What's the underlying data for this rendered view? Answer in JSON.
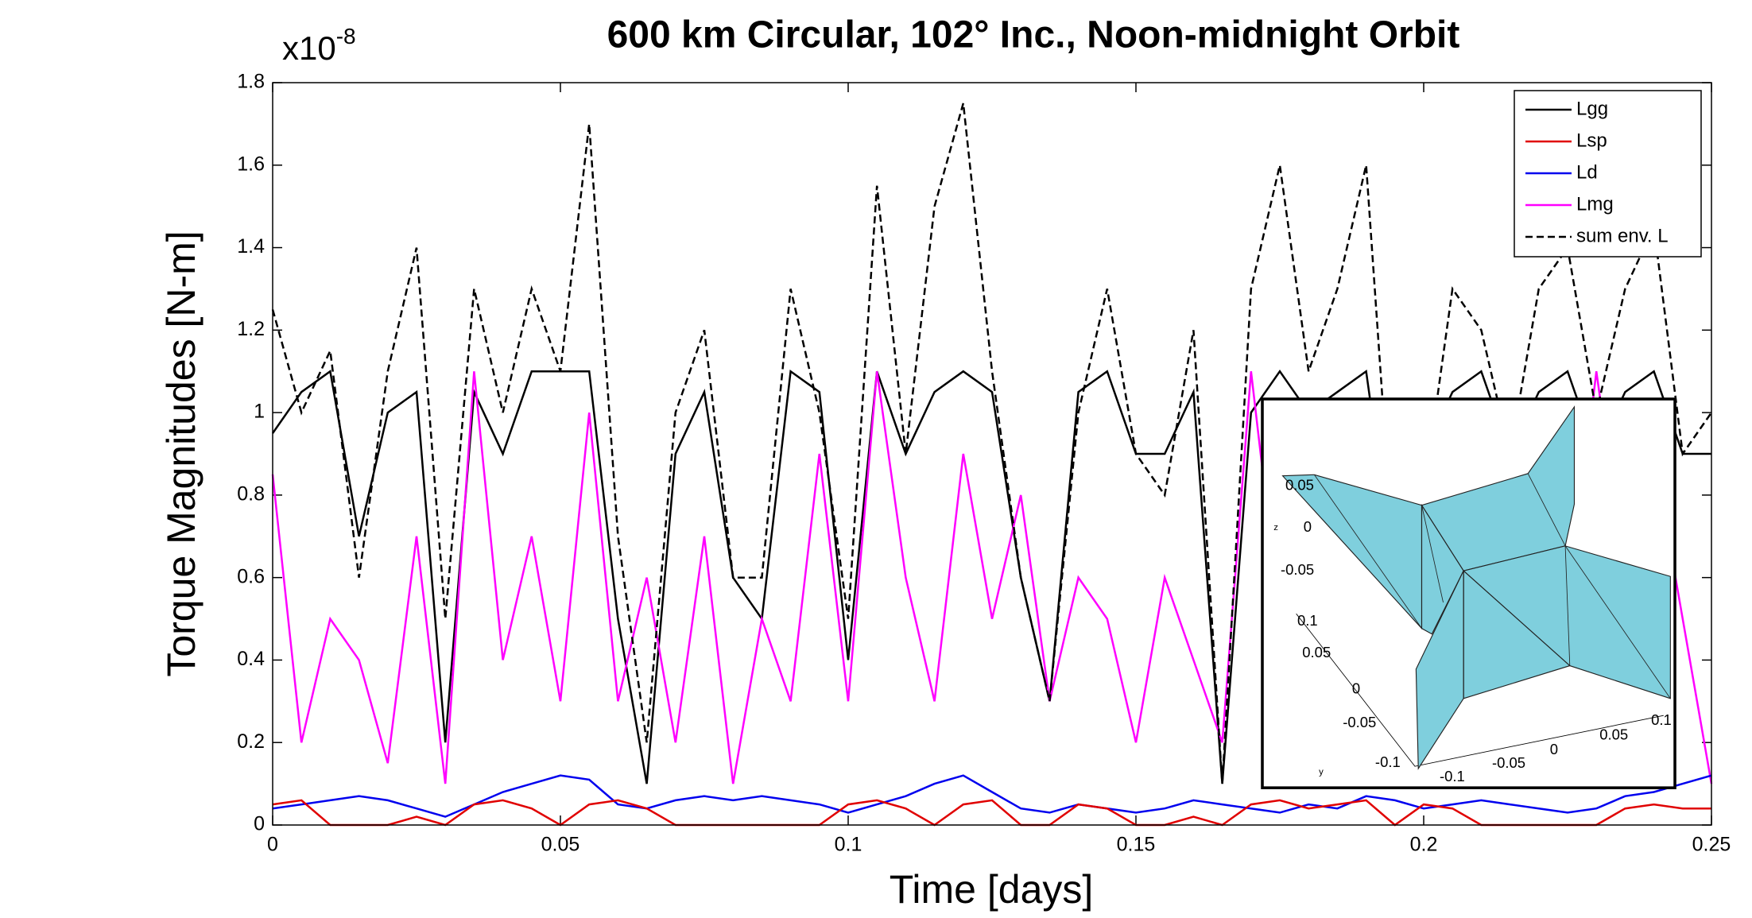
{
  "chart_data": {
    "type": "line",
    "title": "600 km Circular, 102° Inc., Noon-midnight Orbit",
    "y_multiplier": {
      "base": "x10",
      "exponent": "-8"
    },
    "x_label": "Time [days]",
    "y_label": "Torque Magnitudes [N-m]",
    "xlim": [
      0,
      0.25
    ],
    "xticks": [
      0,
      0.05,
      0.1,
      0.15,
      0.2,
      0.25
    ],
    "ylim": [
      0,
      1.8
    ],
    "yticks": [
      0,
      0.2,
      0.4,
      0.6,
      0.8,
      1,
      1.2,
      1.4,
      1.6,
      1.8
    ],
    "legend_position": "upper right",
    "x": [
      0,
      0.005,
      0.01,
      0.015,
      0.02,
      0.025,
      0.03,
      0.035,
      0.04,
      0.045,
      0.05,
      0.055,
      0.06,
      0.065,
      0.07,
      0.075,
      0.08,
      0.085,
      0.09,
      0.095,
      0.1,
      0.105,
      0.11,
      0.115,
      0.12,
      0.125,
      0.13,
      0.135,
      0.14,
      0.145,
      0.15,
      0.155,
      0.16,
      0.165,
      0.17,
      0.175,
      0.18,
      0.185,
      0.19,
      0.195,
      0.2,
      0.205,
      0.21,
      0.215,
      0.22,
      0.225,
      0.23,
      0.235,
      0.24,
      0.245,
      0.25
    ],
    "series": [
      {
        "name": "Lgg",
        "color": "#000000",
        "dashed": false,
        "values": [
          0.95,
          1.05,
          1.1,
          0.7,
          1.0,
          1.05,
          0.2,
          1.05,
          0.9,
          1.1,
          1.1,
          1.1,
          0.5,
          0.1,
          0.9,
          1.05,
          0.6,
          0.5,
          1.1,
          1.05,
          0.4,
          1.1,
          0.9,
          1.05,
          1.1,
          1.05,
          0.6,
          0.3,
          1.05,
          1.1,
          0.9,
          0.9,
          1.05,
          0.1,
          1.0,
          1.1,
          1.0,
          1.05,
          1.1,
          0.6,
          0.9,
          1.05,
          1.1,
          0.9,
          1.05,
          1.1,
          0.9,
          1.05,
          1.1,
          0.9,
          0.9
        ]
      },
      {
        "name": "Lsp",
        "color": "#e00000",
        "dashed": false,
        "values": [
          0.05,
          0.06,
          0.0,
          0.0,
          0.0,
          0.02,
          0.0,
          0.05,
          0.06,
          0.04,
          0.0,
          0.05,
          0.06,
          0.04,
          0.0,
          0.0,
          0.0,
          0.0,
          0.0,
          0.0,
          0.05,
          0.06,
          0.04,
          0.0,
          0.05,
          0.06,
          0.0,
          0.0,
          0.05,
          0.04,
          0.0,
          0.0,
          0.02,
          0.0,
          0.05,
          0.06,
          0.04,
          0.05,
          0.06,
          0.0,
          0.05,
          0.04,
          0.0,
          0.0,
          0.0,
          0.0,
          0.0,
          0.04,
          0.05,
          0.04,
          0.04
        ]
      },
      {
        "name": "Ld",
        "color": "#0000ee",
        "dashed": false,
        "values": [
          0.04,
          0.05,
          0.06,
          0.07,
          0.06,
          0.04,
          0.02,
          0.05,
          0.08,
          0.1,
          0.12,
          0.11,
          0.05,
          0.04,
          0.06,
          0.07,
          0.06,
          0.07,
          0.06,
          0.05,
          0.03,
          0.05,
          0.07,
          0.1,
          0.12,
          0.08,
          0.04,
          0.03,
          0.05,
          0.04,
          0.03,
          0.04,
          0.06,
          0.05,
          0.04,
          0.03,
          0.05,
          0.04,
          0.07,
          0.06,
          0.04,
          0.05,
          0.06,
          0.05,
          0.04,
          0.03,
          0.04,
          0.07,
          0.08,
          0.1,
          0.12
        ]
      },
      {
        "name": "Lmg",
        "color": "#ff00ff",
        "dashed": false,
        "values": [
          0.85,
          0.2,
          0.5,
          0.4,
          0.15,
          0.7,
          0.1,
          1.1,
          0.4,
          0.7,
          0.3,
          1.0,
          0.3,
          0.6,
          0.2,
          0.7,
          0.1,
          0.5,
          0.3,
          0.9,
          0.3,
          1.1,
          0.6,
          0.3,
          0.9,
          0.5,
          0.8,
          0.3,
          0.6,
          0.5,
          0.2,
          0.6,
          0.4,
          0.2,
          1.1,
          0.5,
          0.7,
          0.5,
          0.6,
          0.3,
          0.6,
          0.5,
          0.7,
          0.4,
          0.8,
          0.5,
          1.1,
          0.6,
          0.9,
          0.5,
          0.1
        ]
      },
      {
        "name": "sum env. L",
        "color": "#000000",
        "dashed": true,
        "values": [
          1.25,
          1.0,
          1.15,
          0.6,
          1.1,
          1.4,
          0.5,
          1.3,
          1.0,
          1.3,
          1.1,
          1.7,
          0.7,
          0.2,
          1.0,
          1.2,
          0.6,
          0.6,
          1.3,
          1.0,
          0.5,
          1.55,
          0.9,
          1.5,
          1.75,
          1.1,
          0.6,
          0.3,
          1.0,
          1.3,
          0.9,
          0.8,
          1.2,
          0.1,
          1.3,
          1.6,
          1.1,
          1.3,
          1.6,
          0.6,
          0.8,
          1.3,
          1.2,
          0.9,
          1.3,
          1.4,
          1.0,
          1.3,
          1.45,
          0.9,
          1.0
        ]
      }
    ],
    "inset": {
      "z_label": "z",
      "y_label": "y",
      "z_ticks": [
        "0.05",
        "0",
        "-0.05"
      ],
      "y_ticks": [
        "0.1",
        "0.05",
        "0",
        "-0.05",
        "-0.1"
      ],
      "x_ticks": [
        "-0.1",
        "-0.05",
        "0",
        "0.05",
        "0.1"
      ]
    }
  }
}
